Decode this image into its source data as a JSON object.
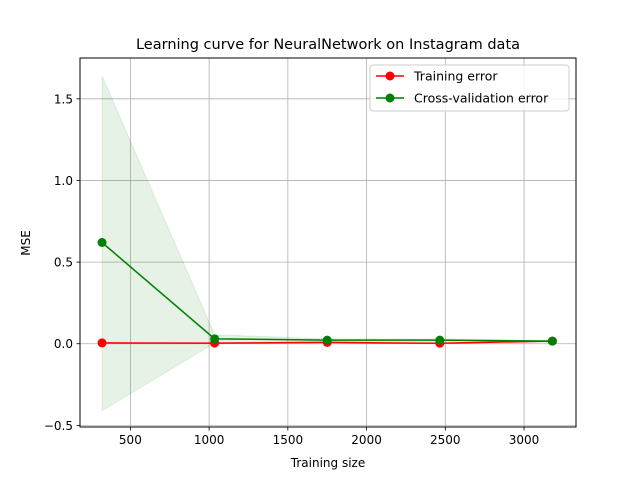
{
  "chart_data": {
    "type": "line",
    "title": "Learning curve for NeuralNetwork on Instagram data",
    "xlabel": "Training size",
    "ylabel": "MSE",
    "xlim": [
      180,
      3330
    ],
    "ylim": [
      -0.51,
      1.75
    ],
    "xticks": [
      500,
      1000,
      1500,
      2000,
      2500,
      3000
    ],
    "yticks": [
      -0.5,
      0.0,
      0.5,
      1.0,
      1.5
    ],
    "xtick_labels": [
      "500",
      "1000",
      "1500",
      "2000",
      "2500",
      "3000"
    ],
    "ytick_labels": [
      "−0.5",
      "0.0",
      "0.5",
      "1.0",
      "1.5"
    ],
    "grid": true,
    "legend_position": "top-right",
    "x": [
      320,
      1035,
      1750,
      2465,
      3180
    ],
    "series": [
      {
        "name": "Training error",
        "color": "#ff0000",
        "values": [
          0.005,
          0.004,
          0.008,
          0.003,
          0.016
        ]
      },
      {
        "name": "Cross-validation error",
        "color": "#008000",
        "values": [
          0.62,
          0.03,
          0.022,
          0.022,
          0.016
        ],
        "band_upper": [
          1.64,
          0.055,
          0.03,
          0.03,
          0.02
        ],
        "band_lower": [
          -0.41,
          0.005,
          0.014,
          0.014,
          0.012
        ]
      }
    ]
  }
}
